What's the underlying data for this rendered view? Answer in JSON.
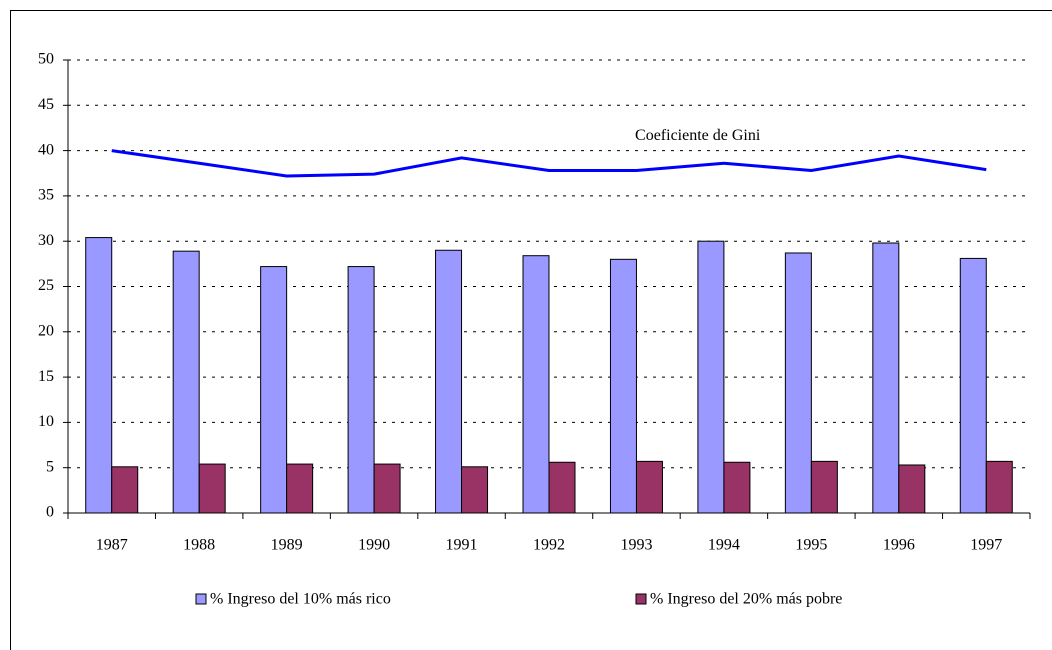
{
  "chart_data": {
    "type": "bar",
    "categories": [
      "1987",
      "1988",
      "1989",
      "1990",
      "1991",
      "1992",
      "1993",
      "1994",
      "1995",
      "1996",
      "1997"
    ],
    "series": [
      {
        "name": "% Ingreso del 10% más rico",
        "color": "#9999ff",
        "values": [
          30.4,
          28.9,
          27.2,
          27.2,
          29.0,
          28.4,
          28.0,
          30.0,
          28.7,
          29.8,
          28.1
        ]
      },
      {
        "name": "% Ingreso del 20% más pobre",
        "color": "#993366",
        "values": [
          5.1,
          5.4,
          5.4,
          5.4,
          5.1,
          5.6,
          5.7,
          5.6,
          5.7,
          5.3,
          5.7
        ]
      },
      {
        "name": "Coeficiente de Gini",
        "type": "line",
        "color": "#0000ff",
        "values": [
          40.0,
          38.6,
          37.2,
          37.4,
          39.2,
          37.8,
          37.8,
          38.6,
          37.8,
          39.4,
          37.9
        ]
      }
    ],
    "ylim": [
      0,
      50
    ],
    "yticks": [
      0,
      5,
      10,
      15,
      20,
      25,
      30,
      35,
      40,
      45,
      50
    ],
    "grid": true
  }
}
